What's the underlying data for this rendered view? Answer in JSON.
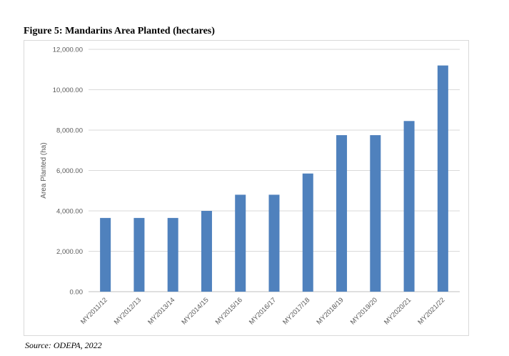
{
  "figure": {
    "title": "Figure 5: Mandarins Area Planted (hectares)",
    "source": "Source: ODEPA, 2022"
  },
  "chart_data": {
    "type": "bar",
    "title": "",
    "xlabel": "",
    "ylabel": "Area Planted (ha)",
    "ylim": [
      0,
      12000
    ],
    "yticks": [
      0,
      2000,
      4000,
      6000,
      8000,
      10000,
      12000
    ],
    "ytick_labels": [
      "0.00",
      "2,000.00",
      "4,000.00",
      "6,000.00",
      "8,000.00",
      "10,000.00",
      "12,000.00"
    ],
    "grid": true,
    "legend": "none",
    "bar_color": "#4f81bd",
    "categories": [
      "MY2011/12",
      "MY2012/13",
      "MY2013/14",
      "MY2014/15",
      "MY2015/16",
      "MY2016/17",
      "MY2017/18",
      "MY2018/19",
      "MY2019/20",
      "MY2020/21",
      "MY2021/22"
    ],
    "values": [
      3650,
      3650,
      3650,
      4000,
      4800,
      4800,
      5850,
      7750,
      7750,
      8450,
      11200
    ]
  }
}
